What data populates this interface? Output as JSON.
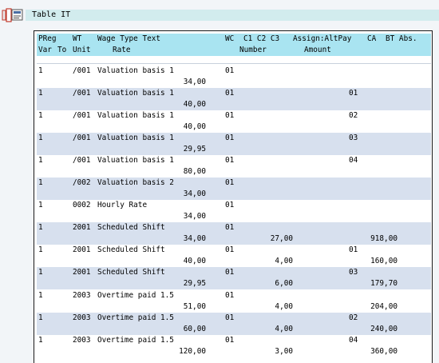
{
  "title": "Table IT",
  "header": {
    "line1": {
      "preg": "PReg",
      "wt": "WT",
      "text": "Wage Type Text",
      "wc": "WC",
      "c123": "C1 C2 C3",
      "assign": "Assign:AltPay",
      "ca": "CA",
      "bt": "BT Abs."
    },
    "line2": {
      "var": "Var",
      "to": "To",
      "unit": "Unit",
      "rate": "Rate",
      "number": "Number",
      "amount": "Amount"
    }
  },
  "rows": [
    {
      "preg": "1",
      "wt": "/001",
      "text": "Valuation basis 1",
      "wc": "01",
      "altpay": "",
      "rate": "34,00",
      "number": "",
      "amount": ""
    },
    {
      "preg": "1",
      "wt": "/001",
      "text": "Valuation basis 1",
      "wc": "01",
      "altpay": "01",
      "rate": "40,00",
      "number": "",
      "amount": ""
    },
    {
      "preg": "1",
      "wt": "/001",
      "text": "Valuation basis 1",
      "wc": "01",
      "altpay": "02",
      "rate": "40,00",
      "number": "",
      "amount": ""
    },
    {
      "preg": "1",
      "wt": "/001",
      "text": "Valuation basis 1",
      "wc": "01",
      "altpay": "03",
      "rate": "29,95",
      "number": "",
      "amount": ""
    },
    {
      "preg": "1",
      "wt": "/001",
      "text": "Valuation basis 1",
      "wc": "01",
      "altpay": "04",
      "rate": "80,00",
      "number": "",
      "amount": ""
    },
    {
      "preg": "1",
      "wt": "/002",
      "text": "Valuation basis 2",
      "wc": "01",
      "altpay": "",
      "rate": "34,00",
      "number": "",
      "amount": ""
    },
    {
      "preg": "1",
      "wt": "0002",
      "text": "Hourly Rate",
      "wc": "01",
      "altpay": "",
      "rate": "34,00",
      "number": "",
      "amount": ""
    },
    {
      "preg": "1",
      "wt": "2001",
      "text": "Scheduled Shift",
      "wc": "01",
      "altpay": "",
      "rate": "34,00",
      "number": "27,00",
      "amount": "918,00"
    },
    {
      "preg": "1",
      "wt": "2001",
      "text": "Scheduled Shift",
      "wc": "01",
      "altpay": "01",
      "rate": "40,00",
      "number": "4,00",
      "amount": "160,00"
    },
    {
      "preg": "1",
      "wt": "2001",
      "text": "Scheduled Shift",
      "wc": "01",
      "altpay": "03",
      "rate": "29,95",
      "number": "6,00",
      "amount": "179,70"
    },
    {
      "preg": "1",
      "wt": "2003",
      "text": "Overtime paid 1.5",
      "wc": "01",
      "altpay": "",
      "rate": "51,00",
      "number": "4,00",
      "amount": "204,00"
    },
    {
      "preg": "1",
      "wt": "2003",
      "text": "Overtime paid 1.5",
      "wc": "01",
      "altpay": "02",
      "rate": "60,00",
      "number": "4,00",
      "amount": "240,00"
    },
    {
      "preg": "1",
      "wt": "2003",
      "text": "Overtime paid 1.5",
      "wc": "01",
      "altpay": "04",
      "rate": "120,00",
      "number": "3,00",
      "amount": "360,00"
    }
  ]
}
